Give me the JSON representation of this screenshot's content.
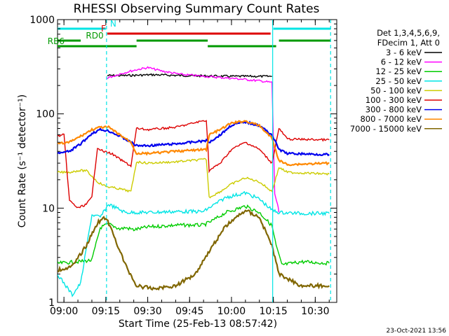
{
  "chart_data": {
    "type": "line",
    "title": "RHESSI Observing Summary Count Rates",
    "xlabel": "Start Time (25-Feb-13 08:57:42)",
    "ylabel": "Count Rate (s⁻¹ detector⁻¹)",
    "y_scale": "log",
    "ylim": [
      1,
      1000
    ],
    "xlim": [
      "08:57:42",
      "10:37:42"
    ],
    "y_ticks": [
      {
        "value": 1,
        "label": "1"
      },
      {
        "value": 10,
        "label": "10"
      },
      {
        "value": 100,
        "label": "100"
      },
      {
        "value": 1000,
        "label": "1000"
      }
    ],
    "x_ticks": [
      {
        "t": "09:00",
        "label": "09:00"
      },
      {
        "t": "09:15",
        "label": "09:15"
      },
      {
        "t": "09:30",
        "label": "09:30"
      },
      {
        "t": "09:45",
        "label": "09:45"
      },
      {
        "t": "10:00",
        "label": "10:00"
      },
      {
        "t": "10:15",
        "label": "10:15"
      },
      {
        "t": "10:30",
        "label": "10:30"
      }
    ],
    "legend_header": [
      "Det 1,3,4,5,6,9,",
      "FDecim 1, Att 0"
    ],
    "legend_position": "right",
    "series": [
      {
        "name": "3 - 6 keV",
        "color": "#000000",
        "points": [
          [
            "09:15:30",
            255
          ],
          [
            "09:22:00",
            255
          ],
          [
            "09:32:00",
            260
          ],
          [
            "09:42:00",
            255
          ],
          [
            "09:52:00",
            252
          ],
          [
            "10:02:00",
            250
          ],
          [
            "10:12:00",
            250
          ],
          [
            "10:14:30",
            250
          ]
        ]
      },
      {
        "name": "6 - 12 keV",
        "color": "#ff00ff",
        "points": [
          [
            "09:15:30",
            240
          ],
          [
            "09:20:00",
            265
          ],
          [
            "09:25:00",
            290
          ],
          [
            "09:30:00",
            310
          ],
          [
            "09:35:00",
            285
          ],
          [
            "09:42:00",
            262
          ],
          [
            "09:52:00",
            248
          ],
          [
            "10:02:00",
            236
          ],
          [
            "10:10:00",
            224
          ],
          [
            "10:14:30",
            215
          ],
          [
            "10:15:30",
            14
          ],
          [
            "10:16:30",
            11
          ],
          [
            "10:17:00",
            9
          ]
        ]
      },
      {
        "name": "12 - 25 keV",
        "color": "#00cc00",
        "points": [
          [
            "08:57:42",
            2.6
          ],
          [
            "09:05:00",
            2.7
          ],
          [
            "09:10:00",
            2.8
          ],
          [
            "09:13:00",
            6.2
          ],
          [
            "09:16:00",
            6.8
          ],
          [
            "09:20:00",
            6.0
          ],
          [
            "09:22:00",
            6.2
          ],
          [
            "09:25:00",
            5.9
          ],
          [
            "09:30:00",
            6.3
          ],
          [
            "09:40:00",
            6.6
          ],
          [
            "09:50:00",
            6.6
          ],
          [
            "09:53:00",
            7.3
          ],
          [
            "09:58:00",
            9.0
          ],
          [
            "10:05:00",
            10.5
          ],
          [
            "10:10:00",
            9.0
          ],
          [
            "10:14:30",
            6.5
          ],
          [
            "10:16:00",
            4.0
          ],
          [
            "10:18:00",
            2.5
          ],
          [
            "10:25:00",
            2.7
          ],
          [
            "10:35:00",
            2.6
          ]
        ]
      },
      {
        "name": "25 - 50 keV",
        "color": "#00e5e5",
        "points": [
          [
            "08:57:42",
            2.0
          ],
          [
            "09:00:00",
            1.6
          ],
          [
            "09:03:00",
            1.2
          ],
          [
            "09:06:00",
            1.6
          ],
          [
            "09:10:00",
            8.5
          ],
          [
            "09:13:00",
            8.0
          ],
          [
            "09:16:00",
            11.0
          ],
          [
            "09:22:00",
            9.0
          ],
          [
            "09:30:00",
            9.0
          ],
          [
            "09:40:00",
            9.2
          ],
          [
            "09:50:00",
            9.2
          ],
          [
            "09:53:00",
            10.5
          ],
          [
            "09:58:00",
            13.0
          ],
          [
            "10:05:00",
            14.5
          ],
          [
            "10:10:00",
            12.5
          ],
          [
            "10:14:30",
            9.5
          ],
          [
            "10:17:00",
            9.0
          ],
          [
            "10:25:00",
            8.8
          ],
          [
            "10:35:00",
            8.8
          ]
        ]
      },
      {
        "name": "50 - 100 keV",
        "color": "#cccc00",
        "points": [
          [
            "08:57:42",
            24
          ],
          [
            "09:02:00",
            24
          ],
          [
            "09:05:00",
            25
          ],
          [
            "09:08:00",
            25
          ],
          [
            "09:12:00",
            19
          ],
          [
            "09:15:00",
            17
          ],
          [
            "09:20:00",
            16
          ],
          [
            "09:24:00",
            15
          ],
          [
            "09:26:00",
            31
          ],
          [
            "09:30:00",
            30
          ],
          [
            "09:40:00",
            31
          ],
          [
            "09:51:00",
            33
          ],
          [
            "09:52:00",
            13
          ],
          [
            "09:56:00",
            15
          ],
          [
            "10:00:00",
            18
          ],
          [
            "10:05:00",
            21
          ],
          [
            "10:10:00",
            19
          ],
          [
            "10:14:30",
            15
          ],
          [
            "10:17:00",
            27
          ],
          [
            "10:20:00",
            24
          ],
          [
            "10:35:00",
            23
          ]
        ]
      },
      {
        "name": "100 - 300 keV",
        "color": "#dd0000",
        "points": [
          [
            "08:57:42",
            58
          ],
          [
            "09:00:00",
            60
          ],
          [
            "09:02:00",
            12
          ],
          [
            "09:05:00",
            10
          ],
          [
            "09:08:00",
            11
          ],
          [
            "09:10:00",
            13
          ],
          [
            "09:12:00",
            44
          ],
          [
            "09:14:00",
            40
          ],
          [
            "09:17:00",
            38
          ],
          [
            "09:20:00",
            33
          ],
          [
            "09:24:00",
            28
          ],
          [
            "09:26:00",
            70
          ],
          [
            "09:30:00",
            68
          ],
          [
            "09:40:00",
            72
          ],
          [
            "09:51:00",
            86
          ],
          [
            "09:52:00",
            25
          ],
          [
            "09:56:00",
            30
          ],
          [
            "10:00:00",
            42
          ],
          [
            "10:05:00",
            50
          ],
          [
            "10:10:00",
            42
          ],
          [
            "10:14:30",
            30
          ],
          [
            "10:17:00",
            70
          ],
          [
            "10:20:00",
            54
          ],
          [
            "10:35:00",
            53
          ]
        ]
      },
      {
        "name": "300 - 800 keV",
        "color": "#0000ee",
        "points": [
          [
            "08:57:42",
            38
          ],
          [
            "09:02:00",
            40
          ],
          [
            "09:06:00",
            48
          ],
          [
            "09:10:00",
            62
          ],
          [
            "09:13:00",
            68
          ],
          [
            "09:16:00",
            66
          ],
          [
            "09:20:00",
            58
          ],
          [
            "09:24:00",
            50
          ],
          [
            "09:26:00",
            46
          ],
          [
            "09:30:00",
            46
          ],
          [
            "09:40:00",
            48
          ],
          [
            "09:51:00",
            52
          ],
          [
            "09:52:00",
            50
          ],
          [
            "09:56:00",
            60
          ],
          [
            "10:00:00",
            76
          ],
          [
            "10:05:00",
            82
          ],
          [
            "10:10:00",
            75
          ],
          [
            "10:14:30",
            60
          ],
          [
            "10:17:00",
            42
          ],
          [
            "10:20:00",
            38
          ],
          [
            "10:35:00",
            37
          ]
        ]
      },
      {
        "name": "800 - 7000 keV",
        "color": "#ff8800",
        "points": [
          [
            "08:57:42",
            48
          ],
          [
            "09:02:00",
            50
          ],
          [
            "09:06:00",
            58
          ],
          [
            "09:10:00",
            68
          ],
          [
            "09:13:00",
            72
          ],
          [
            "09:16:00",
            72
          ],
          [
            "09:20:00",
            60
          ],
          [
            "09:24:00",
            50
          ],
          [
            "09:26:00",
            38
          ],
          [
            "09:30:00",
            38
          ],
          [
            "09:40:00",
            40
          ],
          [
            "09:51:00",
            42
          ],
          [
            "09:52:00",
            60
          ],
          [
            "09:56:00",
            68
          ],
          [
            "10:00:00",
            80
          ],
          [
            "10:05:00",
            84
          ],
          [
            "10:10:00",
            75
          ],
          [
            "10:14:30",
            55
          ],
          [
            "10:17:00",
            32
          ],
          [
            "10:20:00",
            29
          ],
          [
            "10:35:00",
            30
          ]
        ]
      },
      {
        "name": "7000 - 15000 keV",
        "color": "#806600",
        "points": [
          [
            "08:57:42",
            2.2
          ],
          [
            "09:03:00",
            2.4
          ],
          [
            "09:08:00",
            4.0
          ],
          [
            "09:12:00",
            7.0
          ],
          [
            "09:15:00",
            8.0
          ],
          [
            "09:18:00",
            5.0
          ],
          [
            "09:22:00",
            2.5
          ],
          [
            "09:26:00",
            1.5
          ],
          [
            "09:32:00",
            1.4
          ],
          [
            "09:40:00",
            1.5
          ],
          [
            "09:47:00",
            2.0
          ],
          [
            "09:52:00",
            3.5
          ],
          [
            "09:58:00",
            6.5
          ],
          [
            "10:05:00",
            9.5
          ],
          [
            "10:10:00",
            8.0
          ],
          [
            "10:14:30",
            4.0
          ],
          [
            "10:17:00",
            2.0
          ],
          [
            "10:25:00",
            1.5
          ],
          [
            "10:35:00",
            1.5
          ]
        ]
      }
    ],
    "flag_bars": [
      {
        "label": "N",
        "color": "#00e5e5",
        "level": 4,
        "segments": [
          [
            "08:57:42",
            "09:15:00"
          ],
          [
            "10:15:00",
            "10:35:30"
          ]
        ]
      },
      {
        "label": "F",
        "color": "#dd0000",
        "level": 3,
        "segments": [
          [
            "09:15:30",
            "10:14:00"
          ]
        ]
      },
      {
        "label": "RD0",
        "color": "#009900",
        "level": 2,
        "segments": [
          [
            "08:57:42",
            "09:06:00"
          ],
          [
            "09:26:00",
            "09:51:30"
          ],
          [
            "10:17:00",
            "10:35:30"
          ]
        ]
      },
      {
        "label": "RB6",
        "color": "#009900",
        "level": 1,
        "segments": [
          [
            "08:57:42",
            "09:26:00"
          ],
          [
            "09:51:30",
            "10:16:00"
          ]
        ]
      }
    ],
    "vlines": [
      {
        "t": "09:15:15",
        "style": "dashed",
        "color": "#00e5e5"
      },
      {
        "t": "10:14:45",
        "style": "solid",
        "color": "#00e5e5"
      },
      {
        "t": "10:35:30",
        "style": "dashed",
        "color": "#00e5e5"
      }
    ],
    "timestamp": "23-Oct-2021 13:56"
  }
}
